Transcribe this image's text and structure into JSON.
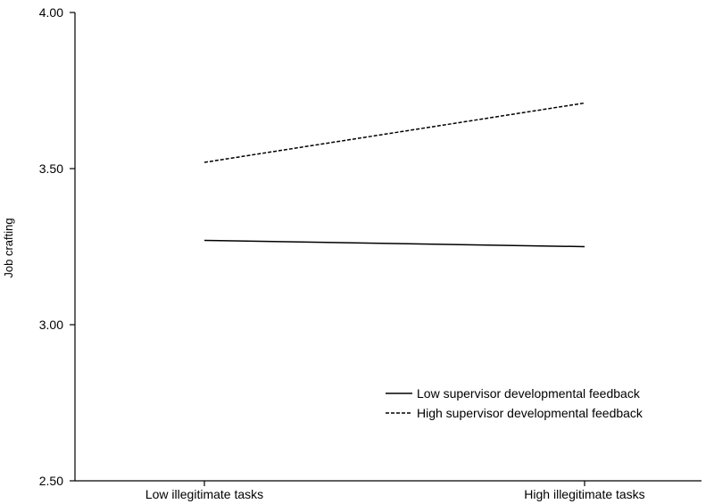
{
  "chart_data": {
    "type": "line",
    "ylabel": "Job crafting",
    "xlabel": "",
    "categories": [
      "Low illegitimate tasks",
      "High illegitimate tasks"
    ],
    "ylim": [
      2.5,
      4.0
    ],
    "yticks": [
      "2.50",
      "3.00",
      "3.50",
      "4.00"
    ],
    "grid": false,
    "legend_position": "bottom-right",
    "series": [
      {
        "name": "Low supervisor developmental feedback",
        "values": [
          3.27,
          3.25
        ],
        "line_style": "solid",
        "color": "#000000"
      },
      {
        "name": "High supervisor developmental feedback",
        "values": [
          3.52,
          3.71
        ],
        "line_style": "dashed",
        "color": "#000000"
      }
    ]
  }
}
